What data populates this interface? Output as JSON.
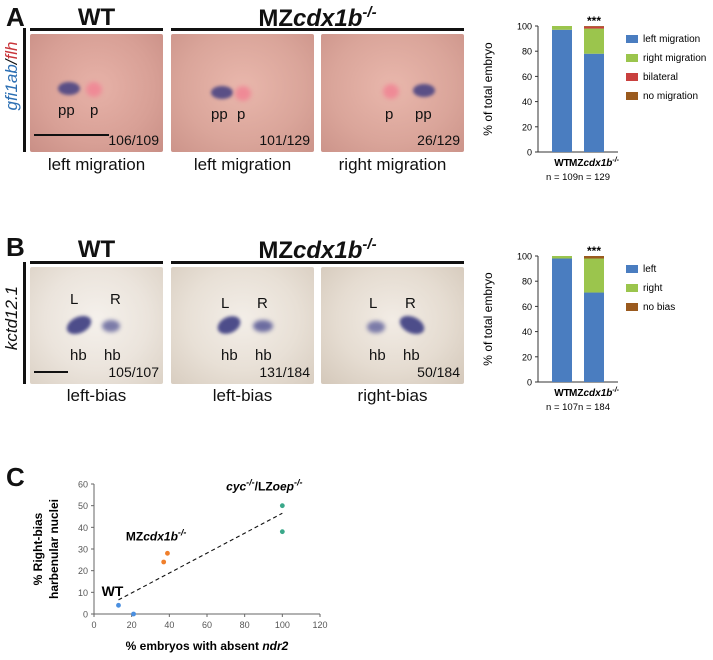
{
  "panelA": {
    "letter": "A",
    "genotype_wt": "WT",
    "genotype_mz_prefix": "MZ",
    "genotype_mz_gene": "cdx1b",
    "genotype_mz_sup": "-/-",
    "vertical_label_part1": "gfi1ab",
    "vertical_label_sep": "/",
    "vertical_label_part2": "flh",
    "images": [
      {
        "labels": [
          "pp",
          "p"
        ],
        "count": "106/109",
        "caption": "left migration"
      },
      {
        "labels": [
          "pp",
          "p"
        ],
        "count": "101/129",
        "caption": "left migration"
      },
      {
        "labels": [
          "p",
          "pp"
        ],
        "count": "26/129",
        "caption": "right migration"
      }
    ]
  },
  "panelB": {
    "letter": "B",
    "genotype_wt": "WT",
    "genotype_mz_prefix": "MZ",
    "genotype_mz_gene": "cdx1b",
    "genotype_mz_sup": "-/-",
    "vertical_label": "kctd12.1",
    "images": [
      {
        "L": "L",
        "R": "R",
        "hb1": "hb",
        "hb2": "hb",
        "count": "105/107",
        "caption": "left-bias"
      },
      {
        "L": "L",
        "R": "R",
        "hb1": "hb",
        "hb2": "hb",
        "count": "131/184",
        "caption": "left-bias"
      },
      {
        "L": "L",
        "R": "R",
        "hb1": "hb",
        "hb2": "hb",
        "count": "50/184",
        "caption": "right-bias"
      }
    ]
  },
  "panelC": {
    "letter": "C",
    "labels": {
      "wt": "WT",
      "mz": "MZcdx1b-/-",
      "cyc": "cyc-/-/LZoep-/-"
    }
  },
  "chart_data": [
    {
      "type": "bar",
      "stacked": true,
      "ylabel": "% of total embryo",
      "ylim": [
        0,
        100
      ],
      "yticks": [
        0,
        20,
        40,
        60,
        80,
        100
      ],
      "categories": [
        "WT",
        "MZcdx1b-/-"
      ],
      "n_labels": [
        "n = 109",
        "n = 129"
      ],
      "significance": [
        "",
        "***"
      ],
      "legend_position": "right",
      "series": [
        {
          "name": "left migration",
          "color": "#4a7dc0",
          "values": [
            97,
            78
          ]
        },
        {
          "name": "right migration",
          "color": "#9bc54d",
          "values": [
            3,
            20
          ]
        },
        {
          "name": "bilateral",
          "color": "#c9403e",
          "values": [
            0,
            1.5
          ]
        },
        {
          "name": "no migration",
          "color": "#9a5a1e",
          "values": [
            0,
            0.5
          ]
        }
      ]
    },
    {
      "type": "bar",
      "stacked": true,
      "ylabel": "% of total embryo",
      "ylim": [
        0,
        100
      ],
      "yticks": [
        0,
        20,
        40,
        60,
        80,
        100
      ],
      "categories": [
        "WT",
        "MZcdx1b-/-"
      ],
      "n_labels": [
        "n = 107",
        "n = 184"
      ],
      "significance": [
        "",
        "***"
      ],
      "legend_position": "right",
      "series": [
        {
          "name": "left",
          "color": "#4a7dc0",
          "values": [
            98,
            71
          ]
        },
        {
          "name": "right",
          "color": "#9bc54d",
          "values": [
            2,
            27
          ]
        },
        {
          "name": "no bias",
          "color": "#9a5a1e",
          "values": [
            0,
            2
          ]
        }
      ]
    },
    {
      "type": "scatter",
      "xlabel_prefix": "% embryos with absent ",
      "xlabel_gene": "ndr2",
      "ylabel_line1": "% Right-bias",
      "ylabel_line2": "harbenular nuclei",
      "xlim": [
        0,
        120
      ],
      "ylim": [
        0,
        60
      ],
      "xticks": [
        0,
        20,
        40,
        60,
        80,
        100,
        120
      ],
      "yticks": [
        0,
        10,
        20,
        30,
        40,
        50,
        60
      ],
      "groups": [
        {
          "color": "#4a8fe0",
          "points": [
            [
              13,
              4
            ],
            [
              21,
              0
            ]
          ]
        },
        {
          "color": "#f07f2b",
          "points": [
            [
              37,
              24
            ],
            [
              39,
              28
            ]
          ]
        },
        {
          "color": "#3aa88a",
          "points": [
            [
              100,
              50
            ],
            [
              100,
              38
            ]
          ]
        }
      ],
      "trendline": {
        "x": [
          13,
          100
        ],
        "y": [
          6.5,
          46.5
        ],
        "style": "dashed"
      }
    }
  ]
}
